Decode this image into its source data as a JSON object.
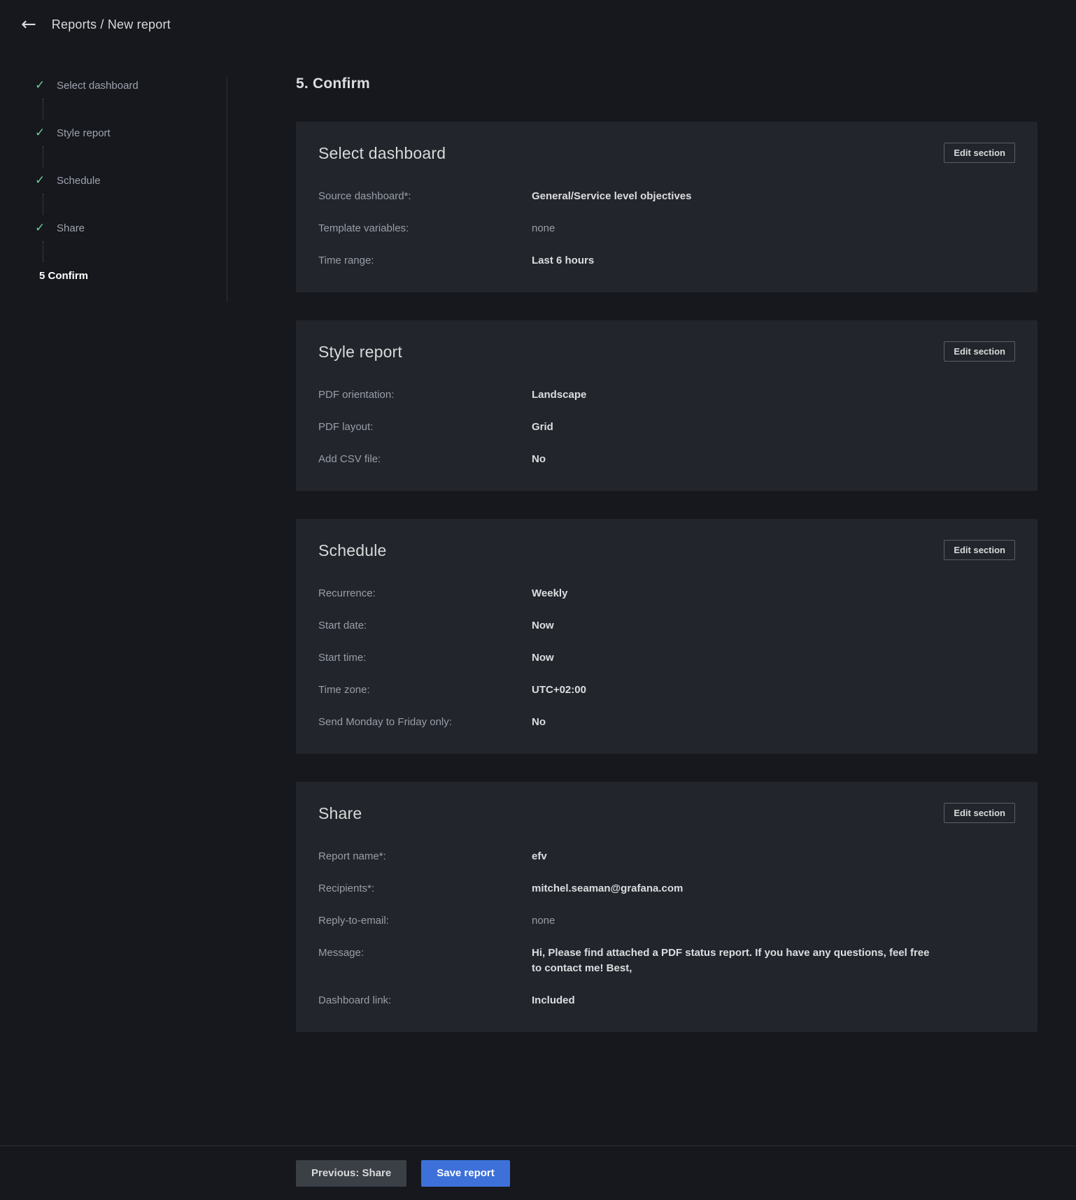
{
  "header": {
    "title": "Reports / New report",
    "back_icon": "←"
  },
  "stepper": {
    "check_icon": "✓",
    "steps": [
      {
        "label": "Select dashboard",
        "state": "done"
      },
      {
        "label": "Style report",
        "state": "done"
      },
      {
        "label": "Schedule",
        "state": "done"
      },
      {
        "label": "Share",
        "state": "done"
      },
      {
        "label": "5 Confirm",
        "state": "active"
      }
    ]
  },
  "page": {
    "heading": "5. Confirm"
  },
  "sections": [
    {
      "title": "Select dashboard",
      "edit_label": "Edit section",
      "rows": [
        {
          "label": "Source dashboard*:",
          "value": "General/Service level objectives"
        },
        {
          "label": "Template variables:",
          "value": "none"
        },
        {
          "label": "Time range:",
          "value": "Last 6 hours"
        }
      ]
    },
    {
      "title": "Style report",
      "edit_label": "Edit section",
      "rows": [
        {
          "label": "PDF orientation:",
          "value": "Landscape"
        },
        {
          "label": "PDF layout:",
          "value": "Grid"
        },
        {
          "label": "Add CSV file:",
          "value": "No"
        }
      ]
    },
    {
      "title": "Schedule",
      "edit_label": "Edit section",
      "rows": [
        {
          "label": "Recurrence:",
          "value": "Weekly"
        },
        {
          "label": "Start date:",
          "value": "Now"
        },
        {
          "label": "Start time:",
          "value": "Now"
        },
        {
          "label": "Time zone:",
          "value": "UTC+02:00"
        },
        {
          "label": "Send Monday to Friday only:",
          "value": "No"
        }
      ]
    },
    {
      "title": "Share",
      "edit_label": "Edit section",
      "rows": [
        {
          "label": "Report name*:",
          "value": "efv"
        },
        {
          "label": "Recipients*:",
          "value": "mitchel.seaman@grafana.com"
        },
        {
          "label": "Reply-to-email:",
          "value": "none"
        },
        {
          "label": "Message:",
          "value": "Hi, Please find attached a PDF status report. If you have any questions, feel free to contact me! Best,"
        },
        {
          "label": "Dashboard link:",
          "value": "Included"
        }
      ]
    }
  ],
  "footer": {
    "previous_label": "Previous: Share",
    "save_label": "Save report"
  },
  "colors": {
    "accent_blue": "#3d71d9",
    "success_green": "#6ccf8e"
  }
}
